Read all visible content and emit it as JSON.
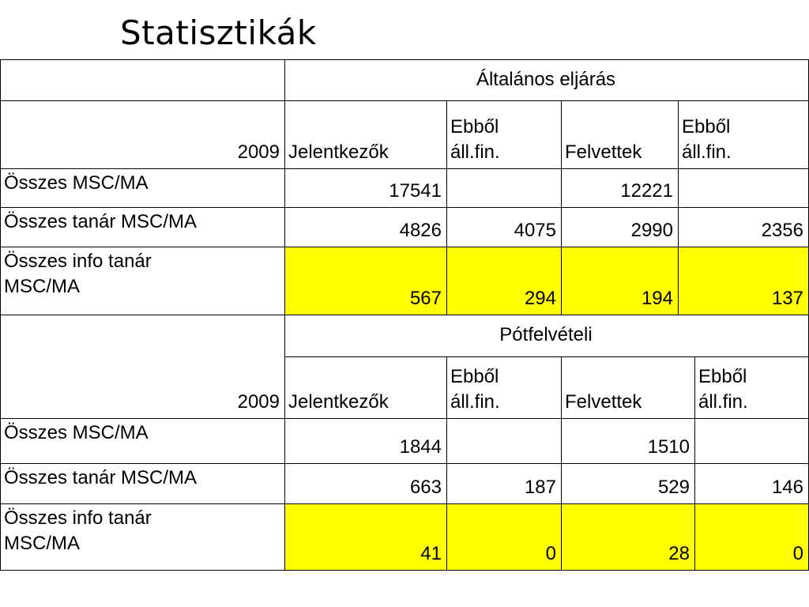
{
  "title": "Statisztikák",
  "colors": {
    "highlight": "#ffff00",
    "border": "#000000"
  },
  "sections": [
    {
      "group_header": "Általános eljárás",
      "year": "2009",
      "columns": [
        "Jelentkezők",
        "Ebből áll.fin.",
        "Felvettek",
        "Ebből áll.fin."
      ],
      "rows": [
        {
          "label": "Összes MSC/MA",
          "values": [
            "17541",
            "",
            "12221",
            ""
          ]
        },
        {
          "label": "Összes tanár MSC/MA",
          "values": [
            "4826",
            "4075",
            "2990",
            "2356"
          ]
        },
        {
          "label": "Összes info tanár MSC/MA",
          "values": [
            "567",
            "294",
            "194",
            "137"
          ],
          "highlighted": true
        }
      ]
    },
    {
      "group_header": "Pótfelvételi",
      "year": "2009",
      "columns": [
        "Jelentkezők",
        "Ebből áll.fin.",
        "Felvettek",
        "Ebből áll.fin."
      ],
      "rows": [
        {
          "label": "Összes MSC/MA",
          "values": [
            "1844",
            "",
            "1510",
            ""
          ]
        },
        {
          "label": "Összes tanár MSC/MA",
          "values": [
            "663",
            "187",
            "529",
            "146"
          ]
        },
        {
          "label": "Összes info tanár MSC/MA",
          "values": [
            "41",
            "0",
            "28",
            "0"
          ],
          "highlighted": true
        }
      ]
    }
  ]
}
